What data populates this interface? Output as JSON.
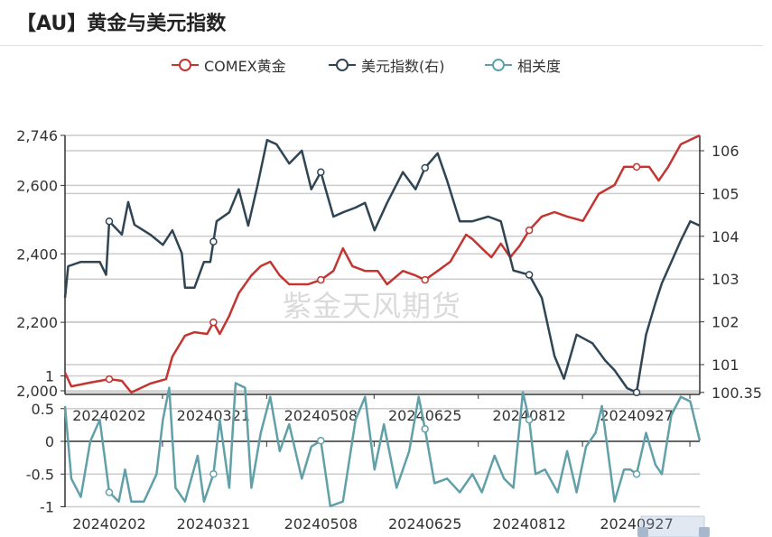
{
  "title": "【AU】黄金与美元指数",
  "watermark": "紫金天风期货",
  "colors": {
    "gold": "#c23531",
    "dxy": "#2f4554",
    "corr": "#61a0a8",
    "axis": "#333333",
    "grid": "#cccccc"
  },
  "chart_data": {
    "type": "line",
    "title": "【AU】黄金与美元指数",
    "legend": {
      "position": "top-center",
      "entries": [
        "COMEX黄金",
        "美元指数(右)",
        "相关度"
      ]
    },
    "x_axis": {
      "unit": "trading day index",
      "range": [
        0,
        201
      ],
      "tick_labels": [
        {
          "t": 14,
          "label": "20240202"
        },
        {
          "t": 47,
          "label": "20240321"
        },
        {
          "t": 81,
          "label": "20240508"
        },
        {
          "t": 114,
          "label": "20240625"
        },
        {
          "t": 147,
          "label": "20240812"
        },
        {
          "t": 181,
          "label": "20240927"
        }
      ]
    },
    "y_left": {
      "range": [
        2000,
        2746
      ],
      "tick_labels": [
        "2,000",
        "2,200",
        "2,400",
        "2,600",
        "2,746"
      ],
      "ticks": [
        2000,
        2200,
        2400,
        2600,
        2746
      ]
    },
    "y_right": {
      "range": [
        100.35,
        106.35
      ],
      "tick_labels": [
        "100.35",
        "101",
        "102",
        "103",
        "104",
        "105",
        "106"
      ],
      "ticks": [
        100.35,
        101,
        102,
        103,
        104,
        105,
        106
      ]
    },
    "y_corr": {
      "range": [
        -1,
        1
      ],
      "tick_labels": [
        "-1",
        "-0.5",
        "0",
        "0.5",
        "1"
      ],
      "ticks": [
        -1,
        -0.5,
        0,
        0.5,
        1
      ]
    },
    "series": [
      {
        "name": "COMEX黄金",
        "axis": "left",
        "points": [
          [
            0,
            2053
          ],
          [
            2,
            2013
          ],
          [
            8,
            2024
          ],
          [
            14,
            2034
          ],
          [
            18,
            2029
          ],
          [
            21,
            1995
          ],
          [
            27,
            2021
          ],
          [
            32,
            2034
          ],
          [
            34,
            2100
          ],
          [
            38,
            2161
          ],
          [
            41,
            2171
          ],
          [
            45,
            2166
          ],
          [
            47,
            2200
          ],
          [
            49,
            2166
          ],
          [
            52,
            2219
          ],
          [
            55,
            2285
          ],
          [
            59,
            2337
          ],
          [
            62,
            2364
          ],
          [
            65,
            2377
          ],
          [
            68,
            2337
          ],
          [
            71,
            2311
          ],
          [
            77,
            2311
          ],
          [
            81,
            2324
          ],
          [
            85,
            2350
          ],
          [
            88,
            2416
          ],
          [
            91,
            2364
          ],
          [
            95,
            2350
          ],
          [
            99,
            2350
          ],
          [
            102,
            2311
          ],
          [
            107,
            2350
          ],
          [
            111,
            2337
          ],
          [
            114,
            2324
          ],
          [
            118,
            2350
          ],
          [
            122,
            2377
          ],
          [
            127,
            2456
          ],
          [
            129,
            2443
          ],
          [
            132,
            2416
          ],
          [
            135,
            2390
          ],
          [
            138,
            2430
          ],
          [
            141,
            2390
          ],
          [
            144,
            2424
          ],
          [
            147,
            2469
          ],
          [
            151,
            2509
          ],
          [
            155,
            2522
          ],
          [
            159,
            2509
          ],
          [
            164,
            2496
          ],
          [
            169,
            2575
          ],
          [
            174,
            2601
          ],
          [
            177,
            2654
          ],
          [
            181,
            2654
          ],
          [
            185,
            2654
          ],
          [
            188,
            2614
          ],
          [
            191,
            2654
          ],
          [
            195,
            2720
          ],
          [
            198,
            2733
          ],
          [
            201,
            2746
          ]
        ]
      },
      {
        "name": "美元指数(右)",
        "axis": "right",
        "points": [
          [
            0,
            102.56
          ],
          [
            1,
            103.3
          ],
          [
            5,
            103.4
          ],
          [
            11,
            103.4
          ],
          [
            13,
            103.1
          ],
          [
            14,
            104.35
          ],
          [
            18,
            104.04
          ],
          [
            20,
            104.8
          ],
          [
            22,
            104.27
          ],
          [
            27,
            104.04
          ],
          [
            31,
            103.8
          ],
          [
            34,
            104.14
          ],
          [
            37,
            103.6
          ],
          [
            38,
            102.8
          ],
          [
            41,
            102.8
          ],
          [
            44,
            103.4
          ],
          [
            46,
            103.4
          ],
          [
            48,
            104.35
          ],
          [
            52,
            104.56
          ],
          [
            55,
            105.1
          ],
          [
            58,
            104.25
          ],
          [
            61,
            105.2
          ],
          [
            64,
            106.25
          ],
          [
            67,
            106.15
          ],
          [
            71,
            105.7
          ],
          [
            75,
            106.0
          ],
          [
            78,
            105.1
          ],
          [
            81,
            105.5
          ],
          [
            85,
            104.46
          ],
          [
            88,
            104.56
          ],
          [
            92,
            104.67
          ],
          [
            95,
            104.78
          ],
          [
            98,
            104.14
          ],
          [
            102,
            104.78
          ],
          [
            107,
            105.5
          ],
          [
            111,
            105.1
          ],
          [
            114,
            105.6
          ],
          [
            118,
            105.94
          ],
          [
            121,
            105.3
          ],
          [
            125,
            104.35
          ],
          [
            129,
            104.35
          ],
          [
            134,
            104.46
          ],
          [
            138,
            104.35
          ],
          [
            142,
            103.2
          ],
          [
            147,
            103.1
          ],
          [
            151,
            102.56
          ],
          [
            155,
            101.2
          ],
          [
            158,
            100.67
          ],
          [
            162,
            101.7
          ],
          [
            167,
            101.5
          ],
          [
            171,
            101.1
          ],
          [
            174,
            100.87
          ],
          [
            178,
            100.45
          ],
          [
            181,
            100.35
          ],
          [
            184,
            101.7
          ],
          [
            187,
            102.45
          ],
          [
            189,
            102.9
          ],
          [
            192,
            103.4
          ],
          [
            195,
            103.9
          ],
          [
            198,
            104.35
          ],
          [
            201,
            104.25
          ]
        ]
      },
      {
        "name": "相关度",
        "axis": "corr",
        "points": [
          [
            0,
            0.54
          ],
          [
            2,
            -0.57
          ],
          [
            5,
            -0.85
          ],
          [
            8,
            0
          ],
          [
            11,
            0.33
          ],
          [
            14,
            -0.78
          ],
          [
            17,
            -0.92
          ],
          [
            19,
            -0.43
          ],
          [
            21,
            -0.92
          ],
          [
            25,
            -0.92
          ],
          [
            29,
            -0.5
          ],
          [
            31,
            0.33
          ],
          [
            33,
            0.82
          ],
          [
            35,
            -0.71
          ],
          [
            38,
            -0.92
          ],
          [
            42,
            -0.22
          ],
          [
            44,
            -0.92
          ],
          [
            47,
            -0.5
          ],
          [
            49,
            0.33
          ],
          [
            52,
            -0.71
          ],
          [
            54,
            0.89
          ],
          [
            57,
            0.82
          ],
          [
            59,
            -0.71
          ],
          [
            62,
            0.13
          ],
          [
            65,
            0.68
          ],
          [
            68,
            -0.15
          ],
          [
            71,
            0.26
          ],
          [
            75,
            -0.57
          ],
          [
            78,
            -0.08
          ],
          [
            81,
            0.01
          ],
          [
            84,
            -0.99
          ],
          [
            88,
            -0.92
          ],
          [
            92,
            0.33
          ],
          [
            95,
            0.68
          ],
          [
            98,
            -0.43
          ],
          [
            101,
            0.26
          ],
          [
            105,
            -0.71
          ],
          [
            109,
            -0.15
          ],
          [
            112,
            0.68
          ],
          [
            114,
            0.19
          ],
          [
            117,
            -0.64
          ],
          [
            121,
            -0.57
          ],
          [
            125,
            -0.78
          ],
          [
            129,
            -0.5
          ],
          [
            132,
            -0.78
          ],
          [
            136,
            -0.22
          ],
          [
            139,
            -0.57
          ],
          [
            142,
            -0.71
          ],
          [
            145,
            0.75
          ],
          [
            147,
            0.33
          ],
          [
            149,
            -0.5
          ],
          [
            152,
            -0.43
          ],
          [
            156,
            -0.78
          ],
          [
            159,
            -0.15
          ],
          [
            162,
            -0.78
          ],
          [
            165,
            -0.08
          ],
          [
            168,
            0.13
          ],
          [
            170,
            0.54
          ],
          [
            174,
            -0.92
          ],
          [
            177,
            -0.43
          ],
          [
            179,
            -0.43
          ],
          [
            181,
            -0.5
          ],
          [
            184,
            0.13
          ],
          [
            187,
            -0.36
          ],
          [
            189,
            -0.5
          ],
          [
            192,
            0.4
          ],
          [
            195,
            0.68
          ],
          [
            198,
            0.61
          ],
          [
            201,
            0.01
          ]
        ]
      }
    ]
  }
}
